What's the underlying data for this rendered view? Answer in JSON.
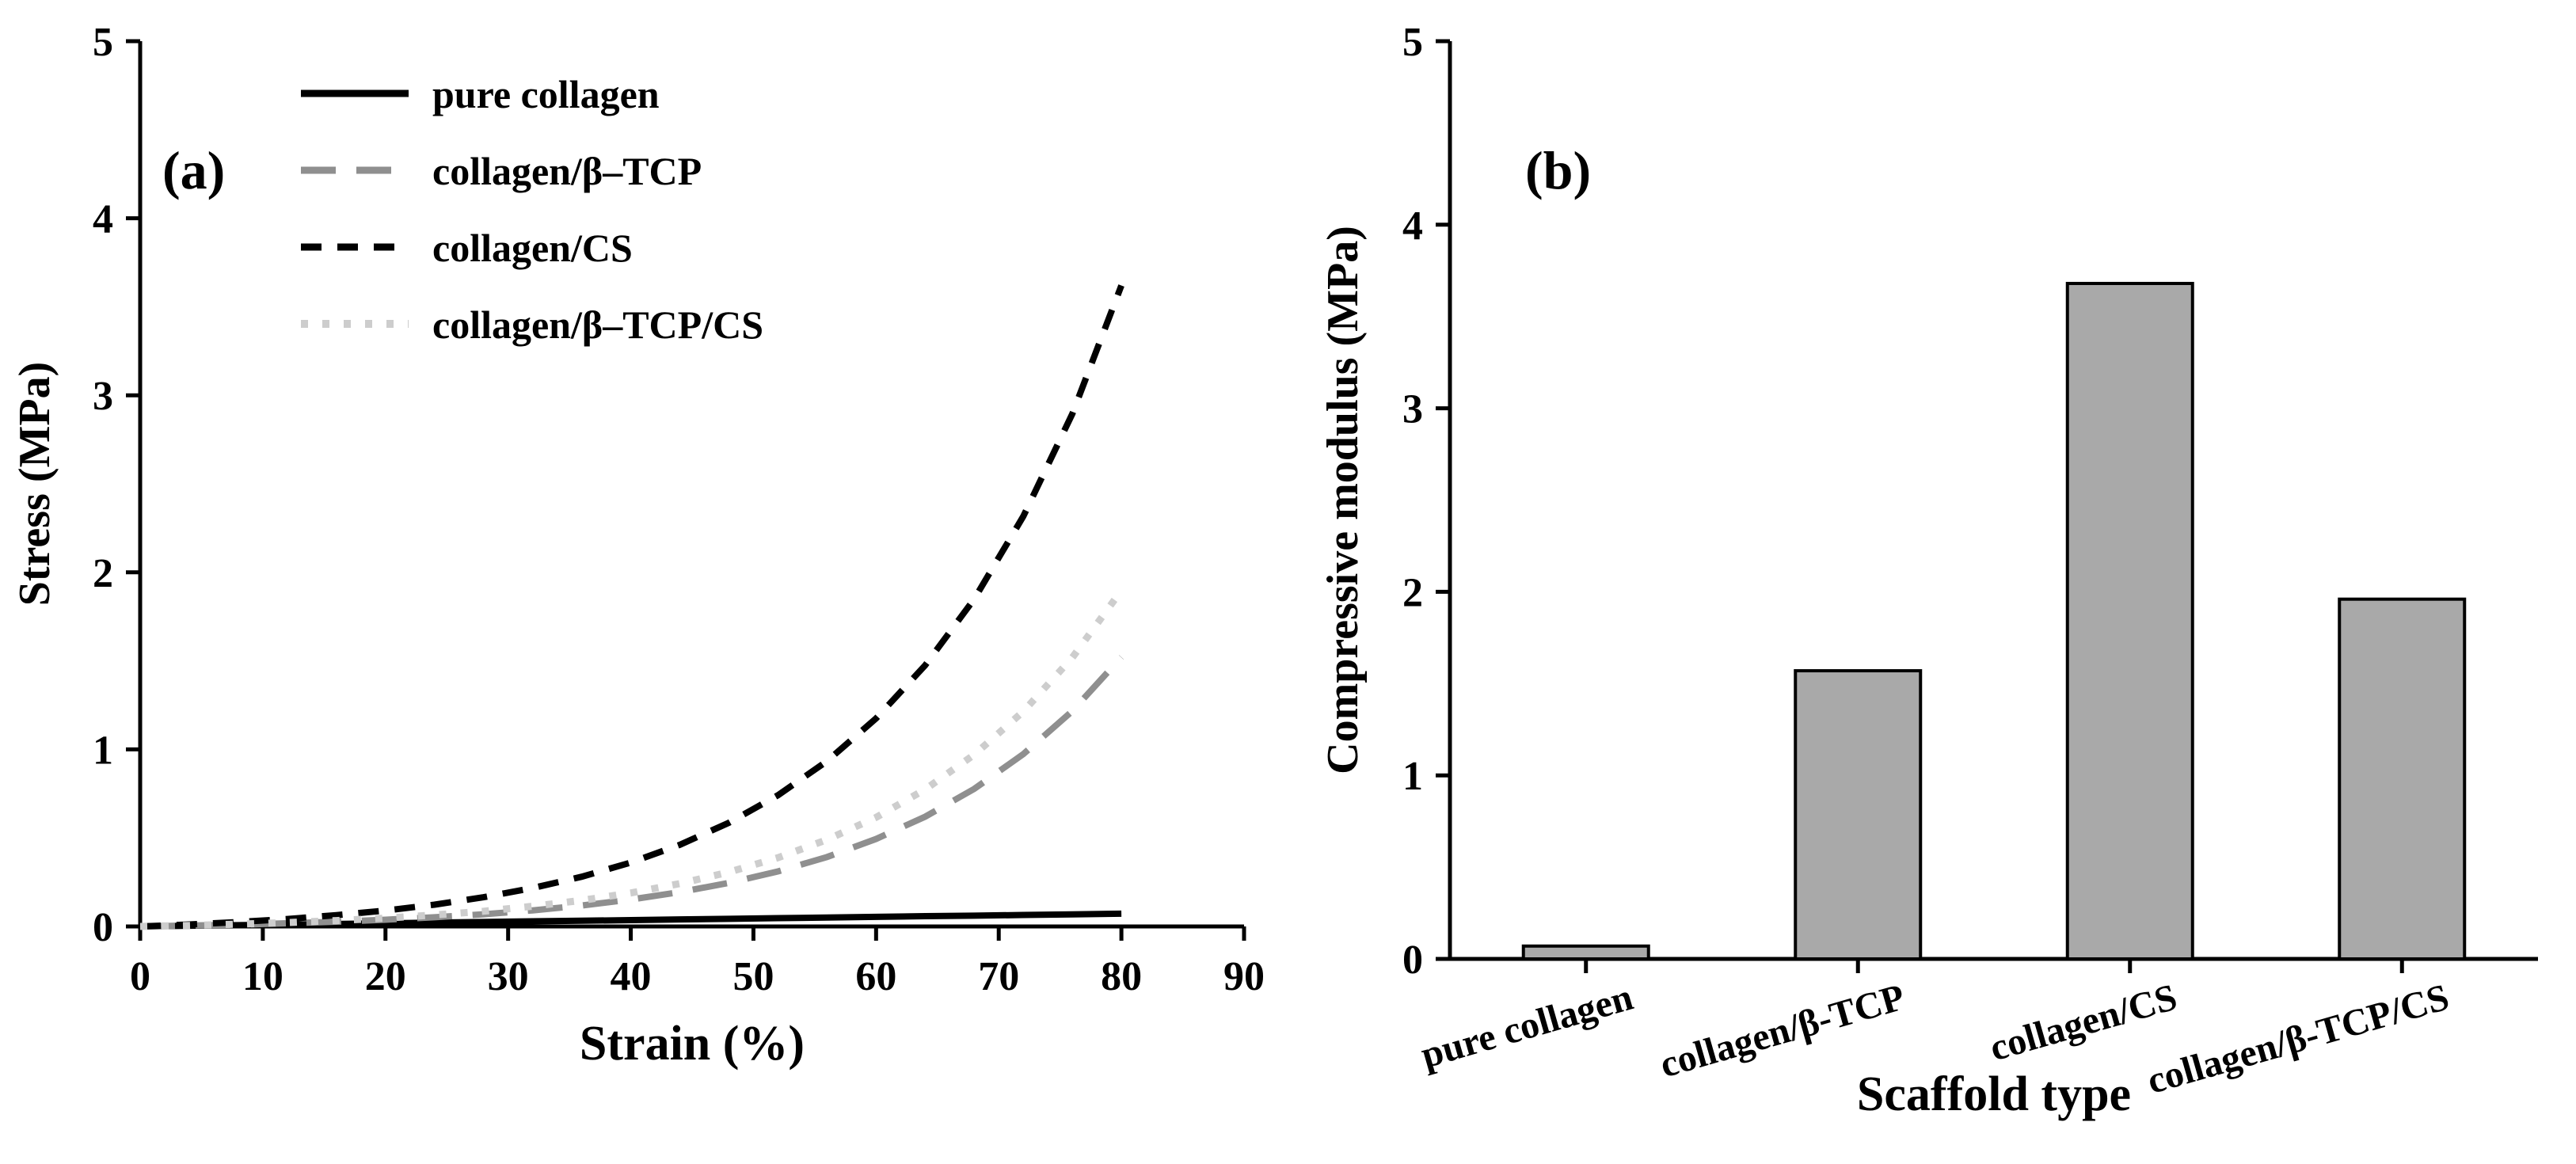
{
  "figure": {
    "background": "#ffffff",
    "axis_color": "#000000"
  },
  "chart_data": [
    {
      "id": "a",
      "type": "line",
      "panel_label": "(a)",
      "title": "",
      "xlabel": "Strain (%)",
      "ylabel": "Stress (MPa)",
      "xlim": [
        0,
        90
      ],
      "ylim": [
        0,
        5
      ],
      "xticks": [
        0,
        10,
        20,
        30,
        40,
        50,
        60,
        70,
        80,
        90
      ],
      "yticks": [
        0,
        1,
        2,
        3,
        4,
        5
      ],
      "grid": false,
      "legend_position": "top-left",
      "x": [
        0,
        4,
        8,
        12,
        16,
        20,
        24,
        28,
        32,
        36,
        40,
        44,
        48,
        52,
        56,
        60,
        64,
        68,
        72,
        76,
        80
      ],
      "series": [
        {
          "name": "pure collagen",
          "color": "#000000",
          "dash": "",
          "width": 8,
          "y": [
            0,
            0.004,
            0.007,
            0.011,
            0.014,
            0.018,
            0.022,
            0.025,
            0.029,
            0.032,
            0.036,
            0.04,
            0.043,
            0.047,
            0.05,
            0.054,
            0.058,
            0.061,
            0.065,
            0.068,
            0.072
          ]
        },
        {
          "name": "collagen/β–TCP",
          "color": "#8f8f8f",
          "dash": "44 26",
          "width": 8,
          "y": [
            0,
            0.005,
            0.01,
            0.018,
            0.027,
            0.038,
            0.052,
            0.069,
            0.091,
            0.118,
            0.152,
            0.194,
            0.246,
            0.311,
            0.392,
            0.494,
            0.62,
            0.777,
            0.973,
            1.217,
            1.521
          ]
        },
        {
          "name": "collagen/CS",
          "color": "#000000",
          "dash": "26 20",
          "width": 8,
          "y": [
            0,
            0.011,
            0.025,
            0.042,
            0.064,
            0.09,
            0.123,
            0.165,
            0.217,
            0.281,
            0.361,
            0.461,
            0.586,
            0.741,
            0.934,
            1.175,
            1.475,
            1.849,
            2.316,
            2.896,
            3.62
          ]
        },
        {
          "name": "collagen/β–TCP/CS",
          "color": "#cdcdcd",
          "dash": "9 18",
          "width": 9,
          "y": [
            0,
            0.006,
            0.013,
            0.022,
            0.033,
            0.047,
            0.065,
            0.086,
            0.114,
            0.147,
            0.189,
            0.242,
            0.307,
            0.388,
            0.49,
            0.616,
            0.774,
            0.97,
            1.214,
            1.519,
            1.898
          ]
        }
      ]
    },
    {
      "id": "b",
      "type": "bar",
      "panel_label": "(b)",
      "title": "",
      "xlabel": "Scaffold type",
      "ylabel": "Compressive modulus (MPa)",
      "ylim": [
        0,
        5
      ],
      "yticks": [
        0,
        1,
        2,
        3,
        4,
        5
      ],
      "grid": false,
      "categories": [
        "pure collagen",
        "collagen/β-TCP",
        "collagen/CS",
        "collagen/β-TCP/CS"
      ],
      "values": [
        0.07,
        1.57,
        3.68,
        1.96
      ],
      "bar_color": "#a9a9a9",
      "bar_edge_color": "#000000"
    }
  ]
}
